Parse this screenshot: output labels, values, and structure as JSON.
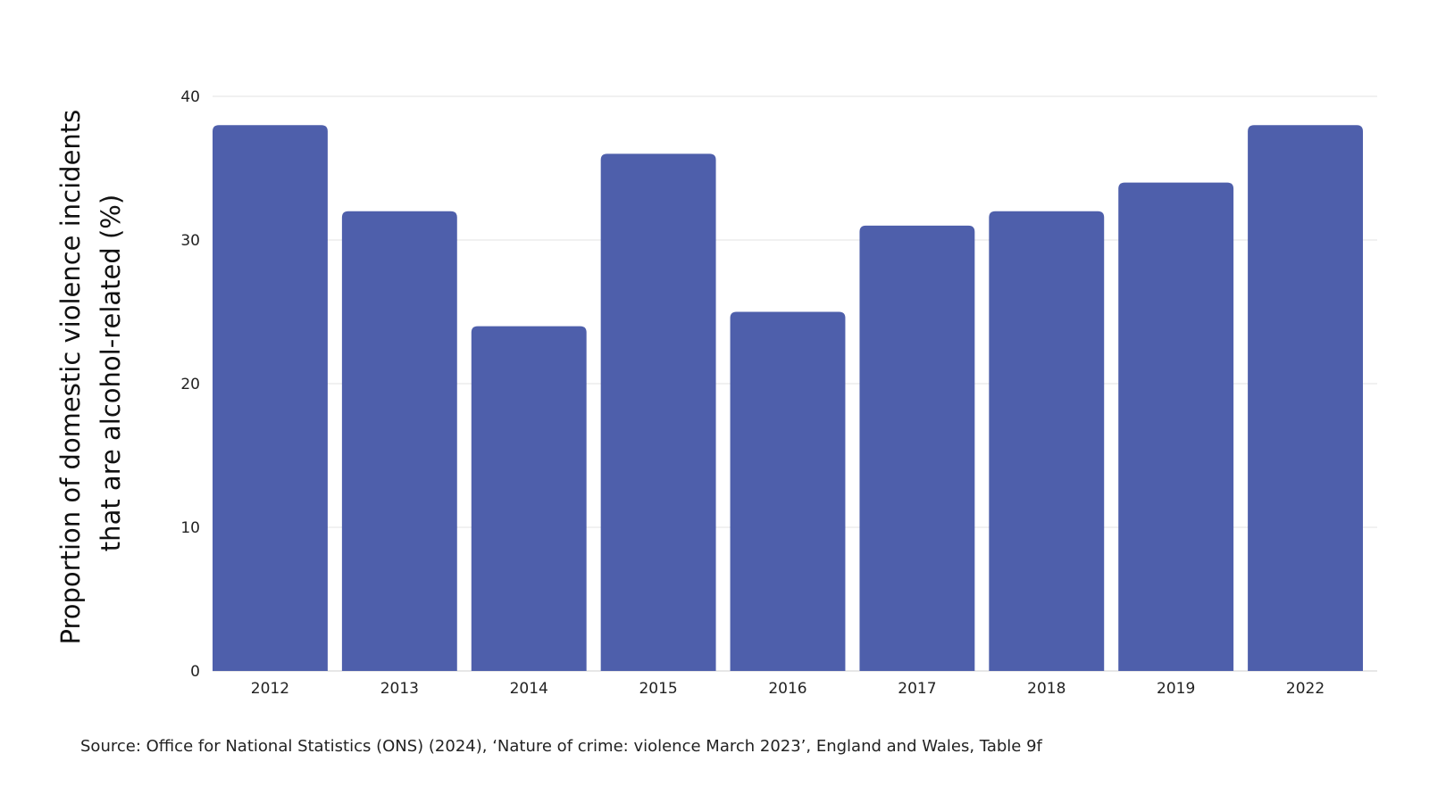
{
  "chart_data": {
    "type": "bar",
    "title": "",
    "ylabel_lines": [
      "Proportion of domestic violence incidents",
      "that are alcohol-related (%)"
    ],
    "xlabel": "",
    "categories": [
      "2012",
      "2013",
      "2014",
      "2015",
      "2016",
      "2017",
      "2018",
      "2019",
      "2022"
    ],
    "values": [
      38,
      32,
      24,
      36,
      25,
      31,
      32,
      34,
      38
    ],
    "ylim": [
      0,
      40
    ],
    "yticks": [
      0,
      10,
      20,
      30,
      40
    ],
    "grid": true,
    "legend": "none",
    "bar_color": "#4e5fab"
  },
  "source_text": "Source: Office for National Statistics (ONS) (2024), ‘Nature of crime: violence March 2023’, England and Wales, Table 9f"
}
